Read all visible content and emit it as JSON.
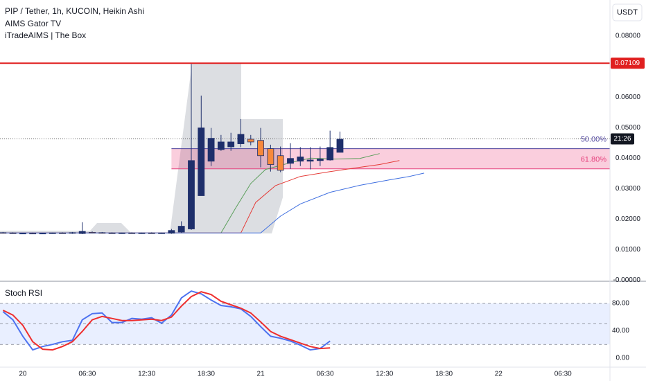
{
  "chart_data": [
    {
      "type": "candlestick",
      "title": "PIP / Tether, 1h, KUCOIN, Heikin Ashi",
      "indicators": [
        "AIMS Gator TV",
        "iTradeAIMS | The Box"
      ],
      "currency": "USDT",
      "x": [
        -2,
        -1,
        0,
        1,
        2,
        3,
        4,
        5,
        6,
        7,
        8,
        9,
        10,
        11,
        12,
        13,
        14,
        15,
        16,
        17,
        18,
        19,
        20,
        21,
        22,
        23,
        24,
        25,
        26,
        27,
        28,
        29,
        30,
        31,
        32
      ],
      "open": [
        0.0156,
        0.0155,
        0.0153,
        0.0154,
        0.0153,
        0.0154,
        0.0155,
        0.0154,
        0.0153,
        0.0157,
        0.0156,
        0.0155,
        0.0154,
        0.0155,
        0.0154,
        0.0155,
        0.0154,
        0.0154,
        0.0158,
        0.0168,
        0.0277,
        0.039,
        0.0428,
        0.0437,
        0.0447,
        0.0462,
        0.0458,
        0.0431,
        0.0408,
        0.0383,
        0.039,
        0.039,
        0.0392,
        0.0394,
        0.0419
      ],
      "high": [
        0.0158,
        0.0157,
        0.0155,
        0.0156,
        0.0155,
        0.0156,
        0.0157,
        0.0158,
        0.019,
        0.016,
        0.0158,
        0.0157,
        0.0156,
        0.0157,
        0.0156,
        0.0157,
        0.0156,
        0.0168,
        0.0193,
        0.0709,
        0.0605,
        0.0499,
        0.0476,
        0.0483,
        0.0528,
        0.0476,
        0.0499,
        0.0444,
        0.0438,
        0.0449,
        0.0436,
        0.0436,
        0.0438,
        0.049,
        0.0487
      ],
      "low": [
        0.0153,
        0.0152,
        0.0151,
        0.0152,
        0.0151,
        0.0152,
        0.0153,
        0.0152,
        0.0151,
        0.0154,
        0.0153,
        0.0153,
        0.0152,
        0.0153,
        0.0152,
        0.0153,
        0.0152,
        0.0152,
        0.0155,
        0.0165,
        0.0277,
        0.0374,
        0.0424,
        0.0424,
        0.0436,
        0.0442,
        0.037,
        0.0356,
        0.0354,
        0.0365,
        0.0374,
        0.0363,
        0.0374,
        0.0392,
        0.0419
      ],
      "close": [
        0.0155,
        0.0153,
        0.0154,
        0.0153,
        0.0154,
        0.0155,
        0.0154,
        0.0156,
        0.016,
        0.0156,
        0.0155,
        0.0154,
        0.0155,
        0.0154,
        0.0155,
        0.0154,
        0.0155,
        0.0163,
        0.0177,
        0.0392,
        0.0499,
        0.0465,
        0.0453,
        0.0453,
        0.0478,
        0.0453,
        0.0408,
        0.0379,
        0.036,
        0.0399,
        0.0404,
        0.0394,
        0.0397,
        0.0435,
        0.0462
      ],
      "up_color": "#1e2f6b",
      "down_color": "#f7893b",
      "lines": [
        {
          "color": "#5a9e5a",
          "x": [
            -2,
            20,
            21.5,
            23,
            24.5,
            27,
            29,
            31.5,
            34,
            36
          ],
          "values": [
            0.0155,
            0.0155,
            0.0238,
            0.0317,
            0.0363,
            0.0385,
            0.04,
            0.0397,
            0.0399,
            0.0415
          ]
        },
        {
          "color": "#e53935",
          "x": [
            -2,
            22,
            23.5,
            25.5,
            28,
            31,
            34,
            36,
            38
          ],
          "values": [
            0.0155,
            0.0155,
            0.0255,
            0.031,
            0.034,
            0.0356,
            0.037,
            0.0379,
            0.0392
          ]
        },
        {
          "color": "#3f6fe0",
          "x": [
            -2,
            24,
            26,
            28,
            31,
            34,
            37,
            39,
            40.5
          ],
          "values": [
            0.0155,
            0.0155,
            0.021,
            0.025,
            0.0288,
            0.0311,
            0.0329,
            0.034,
            0.0351
          ]
        }
      ],
      "hlines": [
        {
          "value": 0.07109,
          "label": "0.07109",
          "color": "#e01f1f"
        }
      ],
      "last_price": 0.0463,
      "countdown": "21:26",
      "fib_zone": {
        "start_x": 15,
        "fill": "#e91e63",
        "levels": [
          {
            "price": 0.0431,
            "text": "50.00%",
            "color": "#4a3f9a"
          },
          {
            "price": 0.0365,
            "text": "61.80%",
            "color": "#e53e7b"
          }
        ]
      },
      "xlim": [
        -2.3,
        59.24
      ],
      "ylim": [
        -0.0001,
        0.0918
      ],
      "yticks": [
        {
          "value": 0.08,
          "label": "0.08000"
        },
        {
          "value": 0.06,
          "label": "0.06000"
        },
        {
          "value": 0.05,
          "label": "0.05000"
        },
        {
          "value": 0.04,
          "label": "0.04000"
        },
        {
          "value": 0.03,
          "label": "0.03000"
        },
        {
          "value": 0.02,
          "label": "0.02000"
        },
        {
          "value": 0.01,
          "label": "0.01000"
        },
        {
          "value": 0,
          "label": "-0.00000"
        }
      ]
    },
    {
      "type": "line",
      "title": "Stoch RSI",
      "x": [
        -2,
        -1,
        0,
        1,
        2,
        3,
        4,
        5,
        6,
        7,
        8,
        9,
        10,
        11,
        12,
        13,
        14,
        15,
        16,
        17,
        18,
        19,
        20,
        21,
        22,
        23,
        24,
        25,
        26,
        27,
        28,
        29,
        30,
        31
      ],
      "series": [
        {
          "color": "#4d72f0",
          "values": [
            68,
            56,
            32,
            12,
            17,
            20,
            24,
            26,
            56,
            65,
            66,
            52,
            52,
            58,
            57,
            59,
            51,
            63,
            88,
            98,
            94,
            85,
            77,
            75,
            72,
            61,
            46,
            32,
            29,
            25,
            19,
            12,
            14,
            25
          ]
        },
        {
          "color": "#ef2e2e",
          "values": [
            70,
            63,
            48,
            24,
            13,
            12,
            17,
            24,
            39,
            56,
            61,
            58,
            55,
            55,
            56,
            57,
            55,
            60,
            76,
            90,
            97,
            93,
            83,
            78,
            73,
            66,
            53,
            39,
            32,
            27,
            22,
            17,
            14,
            15
          ]
        }
      ],
      "levels": [
        80,
        50,
        20
      ],
      "xlim": [
        -2.3,
        59.24
      ],
      "ylim": [
        -13.2,
        111.4
      ],
      "yticks": [
        {
          "value": 80,
          "label": "80.00"
        },
        {
          "value": 40,
          "label": "40.00"
        },
        {
          "value": 0,
          "label": "0.00"
        }
      ],
      "xticks": [
        {
          "value": 0,
          "label": "20"
        },
        {
          "value": 6.5,
          "label": "06:30"
        },
        {
          "value": 12.5,
          "label": "12:30"
        },
        {
          "value": 18.5,
          "label": "18:30"
        },
        {
          "value": 24,
          "label": "21"
        },
        {
          "value": 30.5,
          "label": "06:30"
        },
        {
          "value": 36.5,
          "label": "12:30"
        },
        {
          "value": 42.5,
          "label": "18:30"
        },
        {
          "value": 48,
          "label": "22"
        },
        {
          "value": 54.5,
          "label": "06:30"
        }
      ]
    }
  ]
}
